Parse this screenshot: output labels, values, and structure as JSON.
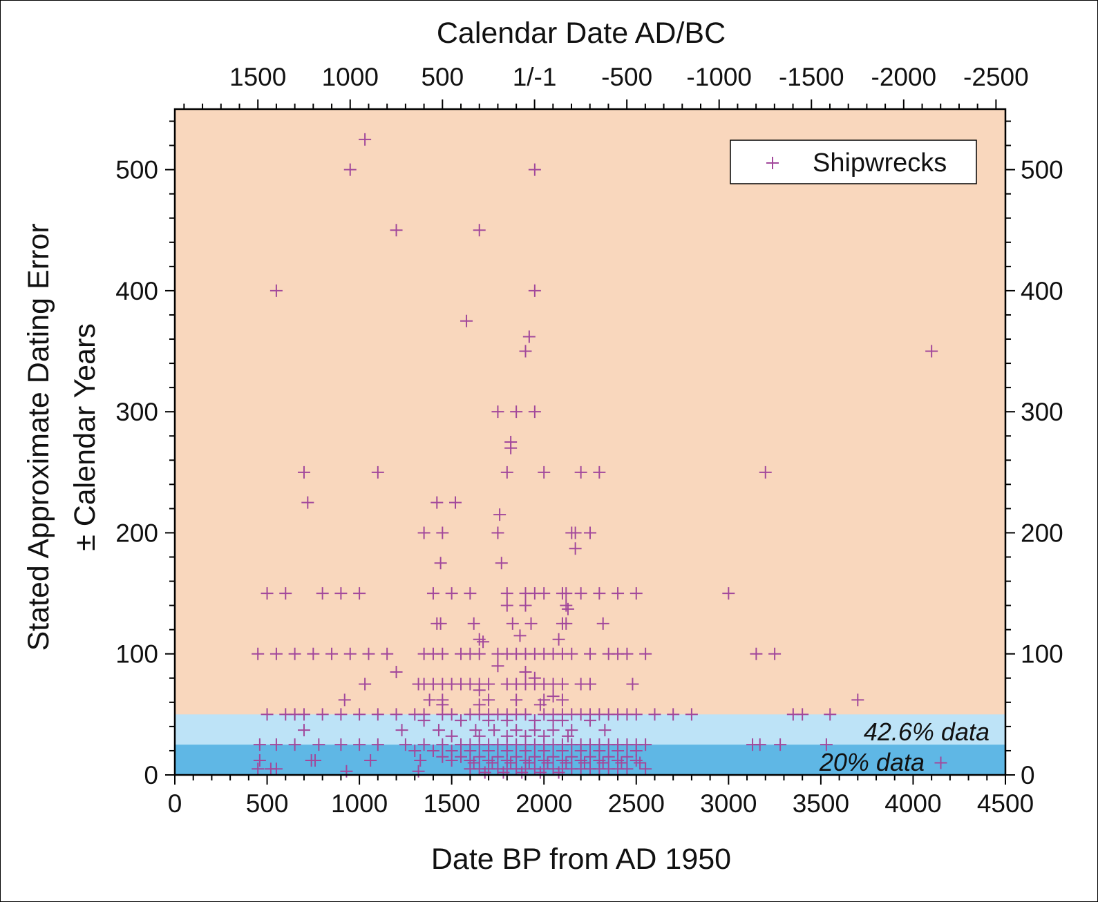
{
  "chart_data": {
    "type": "scatter",
    "title": "",
    "xlabel": "Date BP from AD 1950",
    "x2label": "Calendar Date AD/BC",
    "ylabel_line1": "Stated Approximate Dating Error",
    "ylabel_line2": "± Calendar Years",
    "xlim": [
      0,
      4500
    ],
    "ylim": [
      0,
      550
    ],
    "x_ticks": [
      0,
      500,
      1000,
      1500,
      2000,
      2500,
      3000,
      3500,
      4000,
      4500
    ],
    "y_ticks": [
      0,
      100,
      200,
      300,
      400,
      500
    ],
    "x2_ticks": [
      {
        "value": 1500,
        "label": "1500"
      },
      {
        "value": 1000,
        "label": "1000"
      },
      {
        "value": 500,
        "label": "500"
      },
      {
        "value": 1,
        "label": "1/-1"
      },
      {
        "value": -500,
        "label": "-500"
      },
      {
        "value": -1000,
        "label": "-1000"
      },
      {
        "value": -1500,
        "label": "-1500"
      },
      {
        "value": -2000,
        "label": "-2000"
      },
      {
        "value": -2500,
        "label": "-2500"
      }
    ],
    "legend": {
      "position": "top-right",
      "entries": [
        "Shipwrecks"
      ]
    },
    "bands": [
      {
        "y0": 0,
        "y1": 50,
        "color": "#bde3f7",
        "label": "42.6% data"
      },
      {
        "y0": 0,
        "y1": 25,
        "color": "#5fb7e5",
        "label": "20% data"
      }
    ],
    "background_color": "#f9d7bd",
    "marker_color": "#a2489b",
    "series": [
      {
        "name": "Shipwrecks",
        "marker": "plus",
        "points": [
          [
            1030,
            525
          ],
          [
            950,
            500
          ],
          [
            1950,
            500
          ],
          [
            1200,
            450
          ],
          [
            1650,
            450
          ],
          [
            550,
            400
          ],
          [
            1950,
            400
          ],
          [
            1580,
            375
          ],
          [
            1920,
            362
          ],
          [
            1900,
            350
          ],
          [
            4100,
            350
          ],
          [
            1750,
            300
          ],
          [
            1850,
            300
          ],
          [
            1950,
            300
          ],
          [
            1820,
            275
          ],
          [
            1820,
            270
          ],
          [
            700,
            250
          ],
          [
            1100,
            250
          ],
          [
            1800,
            250
          ],
          [
            2000,
            250
          ],
          [
            2200,
            250
          ],
          [
            2300,
            250
          ],
          [
            3200,
            250
          ],
          [
            720,
            225
          ],
          [
            1420,
            225
          ],
          [
            1520,
            225
          ],
          [
            1760,
            215
          ],
          [
            1350,
            200
          ],
          [
            1450,
            200
          ],
          [
            1750,
            200
          ],
          [
            2150,
            200
          ],
          [
            2170,
            200
          ],
          [
            2250,
            200
          ],
          [
            2170,
            187
          ],
          [
            1440,
            175
          ],
          [
            1770,
            175
          ],
          [
            500,
            150
          ],
          [
            600,
            150
          ],
          [
            800,
            150
          ],
          [
            900,
            150
          ],
          [
            1000,
            150
          ],
          [
            1400,
            150
          ],
          [
            1500,
            150
          ],
          [
            1600,
            150
          ],
          [
            1800,
            150
          ],
          [
            1900,
            150
          ],
          [
            1950,
            150
          ],
          [
            2000,
            150
          ],
          [
            2100,
            150
          ],
          [
            2120,
            150
          ],
          [
            2200,
            150
          ],
          [
            2300,
            150
          ],
          [
            2400,
            150
          ],
          [
            2500,
            150
          ],
          [
            3000,
            150
          ],
          [
            1800,
            140
          ],
          [
            1900,
            140
          ],
          [
            2120,
            140
          ],
          [
            2130,
            137
          ],
          [
            1620,
            125
          ],
          [
            1420,
            125
          ],
          [
            1440,
            125
          ],
          [
            1830,
            125
          ],
          [
            1930,
            125
          ],
          [
            2100,
            125
          ],
          [
            2120,
            125
          ],
          [
            2320,
            125
          ],
          [
            1870,
            115
          ],
          [
            1650,
            112
          ],
          [
            1670,
            110
          ],
          [
            2080,
            112
          ],
          [
            450,
            100
          ],
          [
            550,
            100
          ],
          [
            650,
            100
          ],
          [
            750,
            100
          ],
          [
            850,
            100
          ],
          [
            950,
            100
          ],
          [
            1050,
            100
          ],
          [
            1150,
            100
          ],
          [
            1350,
            100
          ],
          [
            1400,
            100
          ],
          [
            1450,
            100
          ],
          [
            1550,
            100
          ],
          [
            1600,
            100
          ],
          [
            1650,
            100
          ],
          [
            1750,
            100
          ],
          [
            1800,
            100
          ],
          [
            1850,
            100
          ],
          [
            1900,
            100
          ],
          [
            1950,
            100
          ],
          [
            2000,
            100
          ],
          [
            2050,
            100
          ],
          [
            2100,
            100
          ],
          [
            2150,
            100
          ],
          [
            2250,
            100
          ],
          [
            2350,
            100
          ],
          [
            2400,
            100
          ],
          [
            2450,
            100
          ],
          [
            2550,
            100
          ],
          [
            3150,
            100
          ],
          [
            3250,
            100
          ],
          [
            1750,
            90
          ],
          [
            1200,
            85
          ],
          [
            1900,
            85
          ],
          [
            1950,
            80
          ],
          [
            1030,
            75
          ],
          [
            1320,
            75
          ],
          [
            1350,
            75
          ],
          [
            1400,
            75
          ],
          [
            1450,
            75
          ],
          [
            1500,
            75
          ],
          [
            1550,
            75
          ],
          [
            1600,
            75
          ],
          [
            1650,
            75
          ],
          [
            1700,
            75
          ],
          [
            1800,
            75
          ],
          [
            1850,
            75
          ],
          [
            1900,
            75
          ],
          [
            1950,
            75
          ],
          [
            2000,
            75
          ],
          [
            2050,
            75
          ],
          [
            2100,
            75
          ],
          [
            2200,
            75
          ],
          [
            2250,
            75
          ],
          [
            2480,
            75
          ],
          [
            1650,
            70
          ],
          [
            2050,
            65
          ],
          [
            920,
            62
          ],
          [
            1380,
            62
          ],
          [
            1450,
            62
          ],
          [
            1700,
            62
          ],
          [
            1850,
            62
          ],
          [
            2000,
            62
          ],
          [
            2100,
            62
          ],
          [
            3700,
            62
          ],
          [
            1450,
            58
          ],
          [
            1650,
            58
          ],
          [
            1980,
            58
          ],
          [
            500,
            50
          ],
          [
            600,
            50
          ],
          [
            650,
            50
          ],
          [
            700,
            50
          ],
          [
            800,
            50
          ],
          [
            900,
            50
          ],
          [
            1000,
            50
          ],
          [
            1100,
            50
          ],
          [
            1200,
            50
          ],
          [
            1300,
            50
          ],
          [
            1350,
            50
          ],
          [
            1450,
            50
          ],
          [
            1500,
            50
          ],
          [
            1600,
            50
          ],
          [
            1650,
            50
          ],
          [
            1700,
            50
          ],
          [
            1750,
            50
          ],
          [
            1800,
            50
          ],
          [
            1850,
            50
          ],
          [
            1900,
            50
          ],
          [
            2000,
            50
          ],
          [
            2050,
            50
          ],
          [
            2100,
            50
          ],
          [
            2150,
            50
          ],
          [
            2200,
            50
          ],
          [
            2250,
            50
          ],
          [
            2300,
            50
          ],
          [
            2350,
            50
          ],
          [
            2400,
            50
          ],
          [
            2450,
            50
          ],
          [
            2500,
            50
          ],
          [
            2600,
            50
          ],
          [
            2700,
            50
          ],
          [
            2800,
            50
          ],
          [
            3350,
            50
          ],
          [
            3400,
            50
          ],
          [
            3550,
            50
          ],
          [
            1350,
            45
          ],
          [
            1550,
            45
          ],
          [
            1700,
            45
          ],
          [
            1800,
            45
          ],
          [
            1950,
            45
          ],
          [
            2050,
            45
          ],
          [
            2100,
            45
          ],
          [
            2250,
            45
          ],
          [
            700,
            37
          ],
          [
            1230,
            37
          ],
          [
            1430,
            37
          ],
          [
            1630,
            37
          ],
          [
            1730,
            37
          ],
          [
            1850,
            37
          ],
          [
            1950,
            37
          ],
          [
            2050,
            37
          ],
          [
            2150,
            37
          ],
          [
            2330,
            37
          ],
          [
            1500,
            32
          ],
          [
            1650,
            32
          ],
          [
            1800,
            32
          ],
          [
            1900,
            32
          ],
          [
            2000,
            32
          ],
          [
            2130,
            32
          ],
          [
            460,
            25
          ],
          [
            550,
            25
          ],
          [
            650,
            25
          ],
          [
            780,
            25
          ],
          [
            900,
            25
          ],
          [
            1000,
            25
          ],
          [
            1100,
            25
          ],
          [
            1250,
            25
          ],
          [
            1350,
            25
          ],
          [
            1450,
            25
          ],
          [
            1550,
            25
          ],
          [
            1600,
            25
          ],
          [
            1650,
            25
          ],
          [
            1700,
            25
          ],
          [
            1750,
            25
          ],
          [
            1800,
            25
          ],
          [
            1850,
            25
          ],
          [
            1900,
            25
          ],
          [
            1950,
            25
          ],
          [
            2000,
            25
          ],
          [
            2050,
            25
          ],
          [
            2100,
            25
          ],
          [
            2150,
            25
          ],
          [
            2200,
            25
          ],
          [
            2250,
            25
          ],
          [
            2300,
            25
          ],
          [
            2350,
            25
          ],
          [
            2400,
            25
          ],
          [
            2450,
            25
          ],
          [
            2500,
            25
          ],
          [
            2550,
            25
          ],
          [
            3130,
            25
          ],
          [
            3170,
            25
          ],
          [
            3280,
            25
          ],
          [
            3530,
            25
          ],
          [
            1300,
            20
          ],
          [
            1400,
            20
          ],
          [
            1500,
            20
          ],
          [
            1600,
            20
          ],
          [
            1700,
            20
          ],
          [
            1800,
            20
          ],
          [
            1900,
            20
          ],
          [
            2000,
            20
          ],
          [
            2100,
            20
          ],
          [
            2200,
            20
          ],
          [
            2300,
            20
          ],
          [
            2400,
            20
          ],
          [
            2500,
            20
          ],
          [
            1450,
            15
          ],
          [
            1550,
            15
          ],
          [
            1650,
            15
          ],
          [
            1750,
            15
          ],
          [
            1850,
            15
          ],
          [
            1950,
            15
          ],
          [
            2050,
            15
          ],
          [
            2150,
            15
          ],
          [
            2250,
            15
          ],
          [
            2350,
            15
          ],
          [
            2450,
            15
          ],
          [
            460,
            12
          ],
          [
            740,
            12
          ],
          [
            760,
            12
          ],
          [
            1060,
            12
          ],
          [
            1330,
            12
          ],
          [
            1500,
            12
          ],
          [
            1600,
            12
          ],
          [
            1700,
            12
          ],
          [
            1800,
            12
          ],
          [
            1900,
            12
          ],
          [
            2000,
            12
          ],
          [
            2100,
            12
          ],
          [
            2200,
            12
          ],
          [
            2300,
            12
          ],
          [
            2400,
            12
          ],
          [
            2500,
            12
          ],
          [
            1620,
            10
          ],
          [
            1720,
            10
          ],
          [
            1820,
            10
          ],
          [
            1920,
            10
          ],
          [
            2020,
            10
          ],
          [
            2120,
            10
          ],
          [
            2220,
            10
          ],
          [
            2320,
            10
          ],
          [
            2420,
            10
          ],
          [
            2520,
            10
          ],
          [
            4150,
            10
          ],
          [
            450,
            5
          ],
          [
            520,
            5
          ],
          [
            550,
            5
          ],
          [
            930,
            3
          ],
          [
            1320,
            3
          ],
          [
            1600,
            5
          ],
          [
            1650,
            5
          ],
          [
            1700,
            5
          ],
          [
            1750,
            5
          ],
          [
            1800,
            5
          ],
          [
            1850,
            5
          ],
          [
            1900,
            5
          ],
          [
            1950,
            5
          ],
          [
            2000,
            5
          ],
          [
            2050,
            5
          ],
          [
            2100,
            5
          ],
          [
            2150,
            5
          ],
          [
            2200,
            5
          ],
          [
            2250,
            5
          ],
          [
            2300,
            5
          ],
          [
            2350,
            5
          ],
          [
            2400,
            5
          ],
          [
            2450,
            5
          ],
          [
            2550,
            5
          ],
          [
            1680,
            2
          ],
          [
            1780,
            2
          ],
          [
            1880,
            2
          ],
          [
            1980,
            2
          ],
          [
            2080,
            2
          ]
        ]
      }
    ]
  }
}
